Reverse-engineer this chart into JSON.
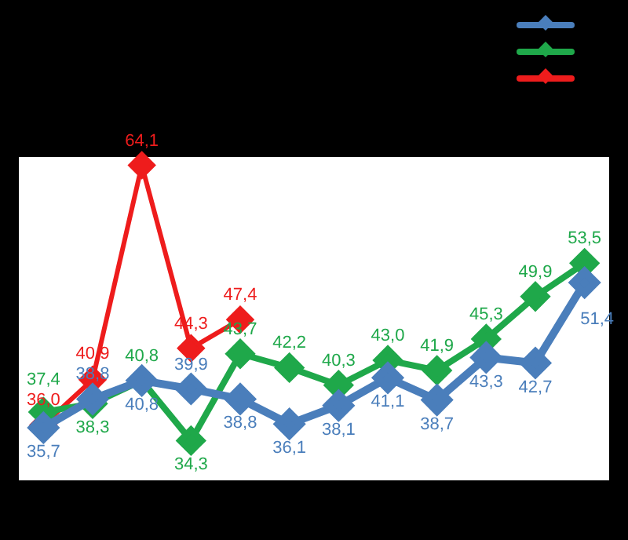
{
  "chart_data": {
    "type": "line",
    "categories": [
      null,
      null,
      null,
      null,
      null,
      null,
      null,
      null,
      null,
      null,
      null,
      null
    ],
    "marker": "diamond",
    "series": [
      {
        "color": "#4a7ebb",
        "values": [
          35.7,
          38.8,
          40.8,
          39.9,
          38.8,
          36.1,
          38.1,
          41.1,
          38.7,
          43.3,
          42.7,
          51.4
        ],
        "value_labels": [
          "35,7",
          "38,8",
          "40,8",
          "39,9",
          "38,8",
          "36,1",
          "38,1",
          "41,1",
          "38,7",
          "43,3",
          "42,7",
          "51,4"
        ]
      },
      {
        "color": "#1fa84a",
        "values": [
          37.4,
          38.3,
          40.8,
          34.3,
          43.7,
          42.2,
          40.3,
          43.0,
          41.9,
          45.3,
          49.9,
          53.5
        ],
        "value_labels": [
          "37,4",
          "38,3",
          "40,8",
          "34,3",
          "43,7",
          "42,2",
          "40,3",
          "43,0",
          "41,9",
          "45,3",
          "49,9",
          "53,5"
        ]
      },
      {
        "color": "#ee1c1c",
        "values": [
          36.0,
          40.9,
          64.1,
          44.3,
          47.4,
          null,
          null,
          null,
          null,
          null,
          null,
          null
        ],
        "value_labels": [
          "36,0",
          "40,9",
          "64,1",
          "44,3",
          "47,4",
          null,
          null,
          null,
          null,
          null,
          null,
          null
        ]
      }
    ]
  }
}
